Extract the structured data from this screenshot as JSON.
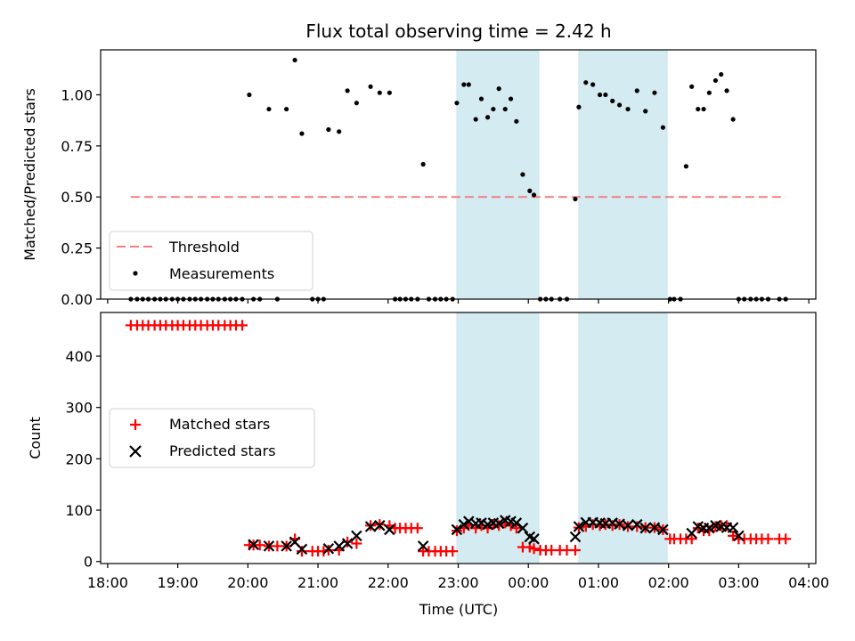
{
  "chart_data": [
    {
      "type": "scatter",
      "panel": "top",
      "title": "Flux total observing time = 2.42 h",
      "ylabel": "Matched/Predicted stars",
      "xlabel": "",
      "xlim": [
        17.9,
        28.1
      ],
      "ylim": [
        0,
        1.22
      ],
      "yticks": [
        0,
        0.25,
        0.5,
        0.75,
        1.0
      ],
      "ytick_labels": [
        "0.00",
        "0.25",
        "0.50",
        "0.75",
        "1.00"
      ],
      "threshold": {
        "name": "Threshold",
        "value": 0.5,
        "x_start": 18.33,
        "x_end": 27.67
      },
      "highlight_bands": [
        [
          22.98,
          24.15
        ],
        [
          24.72,
          25.98
        ]
      ],
      "legend": [
        "Threshold",
        "Measurements"
      ],
      "measurements": {
        "name": "Measurements",
        "x": [
          18.33,
          18.42,
          18.5,
          18.58,
          18.67,
          18.75,
          18.83,
          18.92,
          19.0,
          19.08,
          19.17,
          19.25,
          19.33,
          19.42,
          19.5,
          19.58,
          19.67,
          19.75,
          19.83,
          19.92,
          20.02,
          20.08,
          20.17,
          20.3,
          20.42,
          20.55,
          20.67,
          20.77,
          20.92,
          21.0,
          21.08,
          21.15,
          21.3,
          21.42,
          21.55,
          21.75,
          21.88,
          22.02,
          22.1,
          22.17,
          22.25,
          22.33,
          22.42,
          22.5,
          22.58,
          22.67,
          22.75,
          22.83,
          22.92,
          22.98,
          23.08,
          23.15,
          23.25,
          23.33,
          23.42,
          23.5,
          23.58,
          23.67,
          23.75,
          23.83,
          23.92,
          24.02,
          24.08,
          24.17,
          24.25,
          24.33,
          24.45,
          24.55,
          24.67,
          24.72,
          24.82,
          24.92,
          25.02,
          25.1,
          25.2,
          25.3,
          25.42,
          25.55,
          25.67,
          25.8,
          25.92,
          26.02,
          26.08,
          26.17,
          26.25,
          26.33,
          26.42,
          26.5,
          26.58,
          26.67,
          26.75,
          26.83,
          26.92,
          27.0,
          27.08,
          27.17,
          27.25,
          27.33,
          27.42,
          27.58,
          27.67
        ],
        "y": [
          0,
          0,
          0,
          0,
          0,
          0,
          0,
          0,
          0,
          0,
          0,
          0,
          0,
          0,
          0,
          0,
          0,
          0,
          0,
          0,
          1.0,
          0,
          0,
          0.93,
          0,
          0.93,
          1.17,
          0.81,
          0,
          0,
          0,
          0.83,
          0.82,
          1.02,
          0.96,
          1.04,
          1.01,
          1.01,
          0,
          0,
          0,
          0,
          0,
          0.66,
          0,
          0,
          0,
          0,
          0,
          0.96,
          1.05,
          1.05,
          0.88,
          0.98,
          0.89,
          0.93,
          1.03,
          0.93,
          0.98,
          0.87,
          0.61,
          0.53,
          0.51,
          0,
          0,
          0,
          0,
          0,
          0.49,
          0.94,
          1.06,
          1.05,
          1.0,
          1.0,
          0.97,
          0.95,
          0.93,
          1.02,
          0.92,
          1.01,
          0.84,
          0,
          0,
          0,
          0.65,
          1.04,
          0.93,
          0.93,
          1.01,
          1.07,
          1.1,
          1.02,
          0.88,
          0,
          0,
          0,
          0,
          0,
          0,
          0,
          0
        ]
      }
    },
    {
      "type": "scatter",
      "panel": "bottom",
      "ylabel": "Count",
      "xlabel": "Time (UTC)",
      "xlim": [
        17.9,
        28.1
      ],
      "ylim": [
        -4,
        485
      ],
      "yticks": [
        0,
        100,
        200,
        300,
        400
      ],
      "ytick_labels": [
        "0",
        "100",
        "200",
        "300",
        "400"
      ],
      "xticks": [
        18,
        19,
        20,
        21,
        22,
        23,
        24,
        25,
        26,
        27,
        28
      ],
      "xtick_labels": [
        "18:00",
        "19:00",
        "20:00",
        "21:00",
        "22:00",
        "23:00",
        "00:00",
        "01:00",
        "02:00",
        "03:00",
        "04:00"
      ],
      "highlight_bands": [
        [
          22.98,
          24.15
        ],
        [
          24.72,
          25.98
        ]
      ],
      "legend": [
        "Matched stars",
        "Predicted stars"
      ],
      "series": [
        {
          "name": "Matched stars",
          "marker": "+",
          "color": "#ff0000",
          "x": [
            18.33,
            18.42,
            18.5,
            18.58,
            18.67,
            18.75,
            18.83,
            18.92,
            19.0,
            19.08,
            19.17,
            19.25,
            19.33,
            19.42,
            19.5,
            19.58,
            19.67,
            19.75,
            19.83,
            19.92,
            20.02,
            20.08,
            20.17,
            20.3,
            20.42,
            20.55,
            20.67,
            20.77,
            20.92,
            21.0,
            21.08,
            21.15,
            21.3,
            21.42,
            21.55,
            21.75,
            21.88,
            22.02,
            22.1,
            22.17,
            22.25,
            22.33,
            22.42,
            22.5,
            22.58,
            22.67,
            22.75,
            22.83,
            22.92,
            22.98,
            23.08,
            23.15,
            23.25,
            23.33,
            23.42,
            23.5,
            23.58,
            23.67,
            23.75,
            23.83,
            23.92,
            24.02,
            24.08,
            24.17,
            24.25,
            24.33,
            24.45,
            24.55,
            24.67,
            24.72,
            24.82,
            24.92,
            25.02,
            25.1,
            25.2,
            25.3,
            25.42,
            25.55,
            25.67,
            25.8,
            25.92,
            26.02,
            26.08,
            26.17,
            26.25,
            26.33,
            26.42,
            26.5,
            26.58,
            26.67,
            26.75,
            26.83,
            26.92,
            27.0,
            27.08,
            27.17,
            27.25,
            27.33,
            27.42,
            27.58,
            27.67
          ],
          "y": [
            460,
            460,
            460,
            460,
            460,
            460,
            460,
            460,
            460,
            460,
            460,
            460,
            460,
            460,
            460,
            460,
            460,
            460,
            460,
            460,
            32,
            32,
            32,
            30,
            30,
            30,
            44,
            20,
            20,
            20,
            20,
            22,
            22,
            38,
            35,
            70,
            72,
            70,
            65,
            65,
            65,
            65,
            65,
            20,
            20,
            20,
            20,
            20,
            20,
            60,
            65,
            70,
            65,
            70,
            65,
            72,
            70,
            75,
            70,
            65,
            28,
            28,
            25,
            22,
            22,
            22,
            22,
            22,
            22,
            66,
            68,
            72,
            70,
            72,
            70,
            72,
            68,
            68,
            66,
            66,
            62,
            44,
            44,
            44,
            44,
            44,
            65,
            60,
            60,
            68,
            70,
            70,
            50,
            44,
            44,
            44,
            44,
            44,
            44,
            44,
            44
          ]
        },
        {
          "name": "Predicted stars",
          "marker": "x",
          "color": "#000000",
          "x": [
            20.08,
            20.3,
            20.55,
            20.67,
            20.77,
            21.15,
            21.3,
            21.42,
            21.55,
            21.75,
            21.88,
            22.02,
            22.5,
            22.98,
            23.08,
            23.15,
            23.25,
            23.33,
            23.42,
            23.5,
            23.58,
            23.67,
            23.75,
            23.83,
            23.92,
            24.02,
            24.08,
            24.67,
            24.72,
            24.82,
            24.92,
            25.02,
            25.1,
            25.2,
            25.3,
            25.42,
            25.55,
            25.67,
            25.8,
            25.92,
            26.33,
            26.42,
            26.5,
            26.58,
            26.67,
            26.75,
            26.83,
            26.92,
            27.0
          ],
          "y": [
            33,
            30,
            30,
            38,
            24,
            25,
            30,
            35,
            50,
            68,
            70,
            62,
            30,
            62,
            72,
            78,
            74,
            75,
            72,
            75,
            74,
            80,
            78,
            75,
            65,
            48,
            44,
            48,
            68,
            76,
            76,
            75,
            74,
            75,
            73,
            70,
            72,
            65,
            66,
            62,
            55,
            68,
            65,
            65,
            70,
            68,
            66,
            66,
            50
          ]
        }
      ]
    }
  ]
}
